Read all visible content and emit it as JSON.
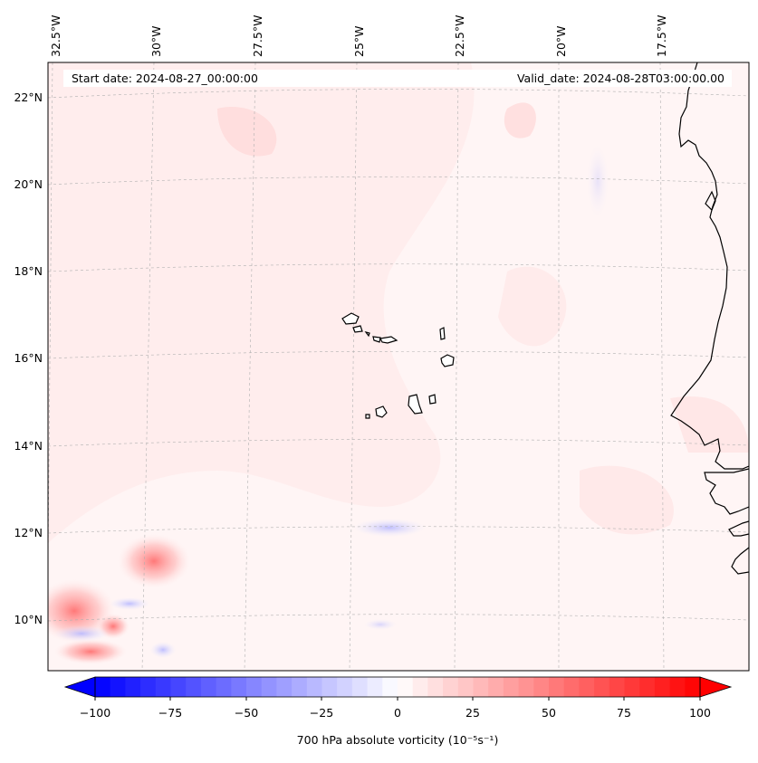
{
  "map": {
    "start_label": "Start date: 2024-08-27_00:00:00",
    "valid_label": "Valid_date: 2024-08-28T03:00:00.00",
    "lon_labels": [
      "32.5°W",
      "30°W",
      "27.5°W",
      "25°W",
      "22.5°W",
      "20°W",
      "17.5°W"
    ],
    "lat_labels": [
      "22°N",
      "20°N",
      "18°N",
      "16°N",
      "14°N",
      "12°N",
      "10°N"
    ],
    "gridlines": "on",
    "field_colors": {
      "positive": "#ff0000",
      "negative": "#0000ff",
      "neutral": "#ffffff",
      "coast": "#000000"
    }
  },
  "colorbar": {
    "label": "700 hPa absolute vorticity (10⁻⁵s⁻¹)",
    "ticks": [
      "−100",
      "−75",
      "−50",
      "−25",
      "0",
      "25",
      "50",
      "75",
      "100"
    ],
    "min": -100,
    "max": 100,
    "levels": 40,
    "colormap": "bwr"
  }
}
